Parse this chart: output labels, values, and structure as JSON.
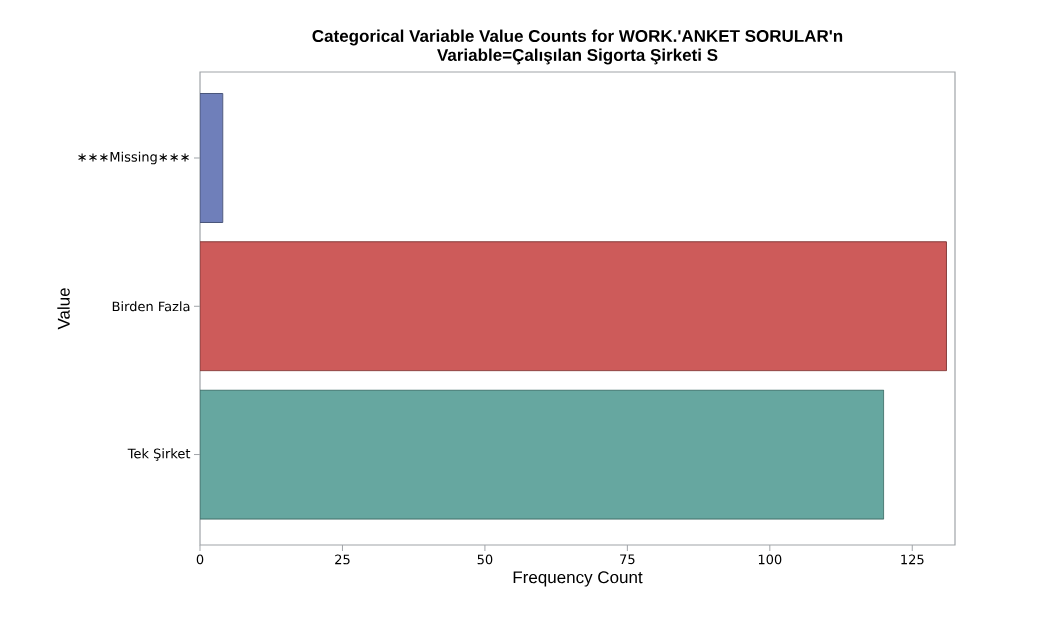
{
  "chart_data": {
    "type": "bar",
    "orientation": "horizontal",
    "title": "Categorical Variable Value Counts for WORK.'ANKET SORULAR'n",
    "subtitle": "Variable=Çalışılan Sigorta Şirketi S",
    "xlabel": "Frequency Count",
    "ylabel": "Value",
    "categories": [
      "∗∗∗Missing∗∗∗",
      "Birden Fazla",
      "Tek Şirket"
    ],
    "values": [
      4,
      131,
      120
    ],
    "colors": [
      "#6f7fba",
      "#cd5b5a",
      "#66a7a0"
    ],
    "xlim": [
      0,
      132.5
    ],
    "xticks": [
      0,
      25,
      50,
      75,
      100,
      125
    ],
    "grid": false
  }
}
